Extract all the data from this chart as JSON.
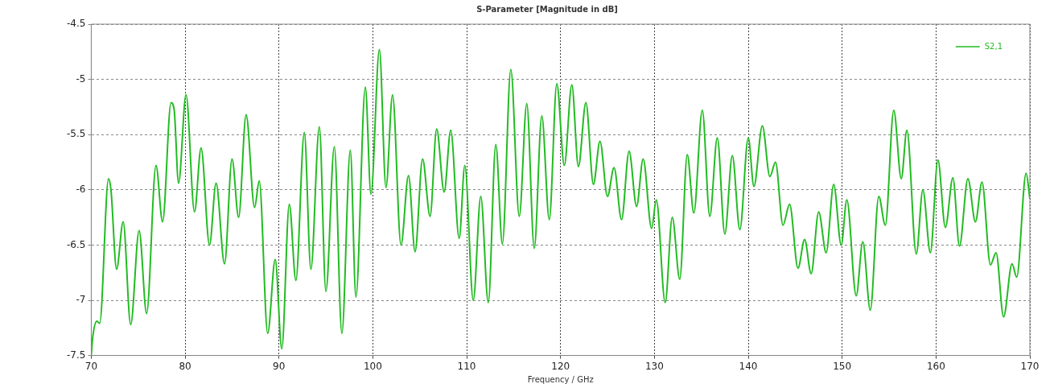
{
  "chart_data": {
    "type": "line",
    "title": "S-Parameter [Magnitude in dB]",
    "xlabel": "Frequency / GHz",
    "xlim": [
      70,
      170
    ],
    "xticks": [
      70,
      80,
      90,
      100,
      110,
      120,
      130,
      140,
      150,
      160,
      170
    ],
    "ylim": [
      -7.5,
      -4.5
    ],
    "yticks": [
      -7.5,
      -7,
      -6.5,
      -6,
      -5.5,
      -5,
      -4.5
    ],
    "grid": true,
    "legend": "top right",
    "marker": "none",
    "line_style": "solid",
    "series": [
      {
        "name": "S2,1",
        "color": "#22bb22",
        "x": [
          70,
          70.15,
          70.6,
          70.9,
          71.84,
          72.1,
          72.7,
          73.4,
          74.2,
          75.1,
          75.9,
          76.9,
          77.6,
          78.5,
          78.84,
          79.3,
          80.1,
          81.0,
          81.7,
          82.6,
          83.3,
          84.2,
          85.0,
          85.7,
          86.5,
          87.4,
          87.9,
          88.8,
          89.6,
          90.3,
          91.1,
          91.8,
          92.7,
          93.4,
          94.3,
          95.0,
          95.9,
          96.7,
          97.6,
          98.2,
          99.2,
          99.8,
          100.7,
          101.4,
          102.1,
          103.0,
          103.8,
          104.5,
          105.3,
          106.1,
          106.8,
          107.6,
          108.3,
          109.2,
          109.8,
          110.7,
          111.5,
          112.3,
          113.1,
          113.8,
          114.7,
          115.6,
          116.4,
          117.2,
          118.0,
          118.8,
          119.6,
          120.4,
          121.2,
          121.9,
          122.7,
          123.5,
          124.2,
          125.0,
          125.7,
          126.5,
          127.3,
          128.1,
          128.8,
          129.7,
          130.2,
          131.15,
          131.9,
          132.7,
          133.5,
          134.2,
          135.1,
          135.9,
          136.7,
          137.5,
          138.3,
          139.1,
          140.0,
          140.6,
          141.5,
          142.3,
          142.9,
          143.7,
          144.4,
          145.3,
          146.0,
          146.7,
          147.5,
          148.3,
          149.1,
          149.9,
          150.5,
          151.5,
          152.2,
          153.0,
          153.9,
          154.6,
          155.5,
          156.3,
          156.9,
          157.9,
          158.6,
          159.4,
          160.2,
          161.0,
          161.8,
          162.5,
          163.4,
          164.2,
          164.9,
          165.8,
          166.4,
          167.2,
          168.1,
          168.6,
          169.6,
          170
        ],
        "values": [
          -7.5,
          -7.34,
          -7.19,
          -7.21,
          -5.9,
          -6.0,
          -6.72,
          -6.29,
          -7.22,
          -6.37,
          -7.12,
          -5.78,
          -6.29,
          -5.21,
          -5.28,
          -5.94,
          -5.14,
          -6.2,
          -5.62,
          -6.5,
          -5.94,
          -6.67,
          -5.72,
          -6.25,
          -5.32,
          -6.16,
          -5.92,
          -7.3,
          -6.63,
          -7.44,
          -6.13,
          -6.82,
          -5.48,
          -6.72,
          -5.43,
          -6.92,
          -5.61,
          -7.3,
          -5.64,
          -6.97,
          -5.07,
          -6.04,
          -4.73,
          -5.98,
          -5.14,
          -6.5,
          -5.87,
          -6.56,
          -5.72,
          -6.24,
          -5.45,
          -6.02,
          -5.46,
          -6.44,
          -5.78,
          -7.0,
          -6.06,
          -7.02,
          -5.59,
          -6.49,
          -4.91,
          -6.24,
          -5.22,
          -6.53,
          -5.33,
          -6.27,
          -5.04,
          -5.78,
          -5.05,
          -5.79,
          -5.21,
          -5.95,
          -5.56,
          -6.06,
          -5.8,
          -6.27,
          -5.65,
          -6.15,
          -5.72,
          -6.35,
          -6.09,
          -7.02,
          -6.25,
          -6.81,
          -5.68,
          -6.21,
          -5.28,
          -6.24,
          -5.53,
          -6.4,
          -5.69,
          -6.36,
          -5.53,
          -5.97,
          -5.42,
          -5.88,
          -5.75,
          -6.32,
          -6.13,
          -6.71,
          -6.45,
          -6.76,
          -6.2,
          -6.57,
          -5.95,
          -6.5,
          -6.09,
          -6.96,
          -6.47,
          -7.09,
          -6.06,
          -6.32,
          -5.28,
          -5.9,
          -5.46,
          -6.58,
          -6.0,
          -6.57,
          -5.73,
          -6.34,
          -5.89,
          -6.51,
          -5.9,
          -6.29,
          -5.93,
          -6.68,
          -6.57,
          -7.15,
          -6.67,
          -6.79,
          -5.85,
          -6.08
        ]
      }
    ]
  }
}
